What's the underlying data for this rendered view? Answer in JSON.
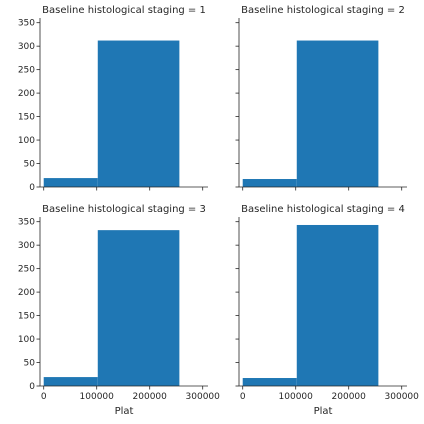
{
  "chart_data": [
    {
      "type": "bar",
      "title": "Baseline histological staging = 1",
      "xlabel": "",
      "ylabel": "",
      "xlim": [
        -7000,
        310000
      ],
      "ylim": [
        0,
        360
      ],
      "xticks": [
        0,
        100000,
        200000,
        300000
      ],
      "xtick_labels": [
        "",
        "",
        "",
        ""
      ],
      "yticks": [
        0,
        50,
        100,
        150,
        200,
        250,
        300,
        350
      ],
      "ytick_labels": [
        "0",
        "50",
        "100",
        "150",
        "200",
        "250",
        "300",
        "350"
      ],
      "bins": [
        {
          "x0": 0,
          "x1": 102000,
          "count": 19
        },
        {
          "x0": 102000,
          "x1": 256000,
          "count": 312
        }
      ]
    },
    {
      "type": "bar",
      "title": "Baseline histological staging = 2",
      "xlabel": "",
      "ylabel": "",
      "xlim": [
        -7000,
        310000
      ],
      "ylim": [
        0,
        360
      ],
      "xticks": [
        0,
        100000,
        200000,
        300000
      ],
      "xtick_labels": [
        "",
        "",
        "",
        ""
      ],
      "yticks": [
        0,
        50,
        100,
        150,
        200,
        250,
        300,
        350
      ],
      "ytick_labels": [
        "",
        "",
        "",
        "",
        "",
        "",
        "",
        ""
      ],
      "bins": [
        {
          "x0": 0,
          "x1": 102000,
          "count": 17
        },
        {
          "x0": 102000,
          "x1": 256000,
          "count": 312
        }
      ]
    },
    {
      "type": "bar",
      "title": "Baseline histological staging = 3",
      "xlabel": "Plat",
      "ylabel": "",
      "xlim": [
        -7000,
        310000
      ],
      "ylim": [
        0,
        360
      ],
      "xticks": [
        0,
        100000,
        200000,
        300000
      ],
      "xtick_labels": [
        "0",
        "100000",
        "200000",
        "300000"
      ],
      "yticks": [
        0,
        50,
        100,
        150,
        200,
        250,
        300,
        350
      ],
      "ytick_labels": [
        "0",
        "50",
        "100",
        "150",
        "200",
        "250",
        "300",
        "350"
      ],
      "bins": [
        {
          "x0": 0,
          "x1": 102000,
          "count": 19
        },
        {
          "x0": 102000,
          "x1": 256000,
          "count": 332
        }
      ]
    },
    {
      "type": "bar",
      "title": "Baseline histological staging = 4",
      "xlabel": "Plat",
      "ylabel": "",
      "xlim": [
        -7000,
        310000
      ],
      "ylim": [
        0,
        360
      ],
      "xticks": [
        0,
        100000,
        200000,
        300000
      ],
      "xtick_labels": [
        "0",
        "100000",
        "200000",
        "300000"
      ],
      "yticks": [
        0,
        50,
        100,
        150,
        200,
        250,
        300,
        350
      ],
      "ytick_labels": [
        "",
        "",
        "",
        "",
        "",
        "",
        "",
        ""
      ],
      "bins": [
        {
          "x0": 0,
          "x1": 102000,
          "count": 17
        },
        {
          "x0": 102000,
          "x1": 256000,
          "count": 343
        }
      ]
    }
  ]
}
